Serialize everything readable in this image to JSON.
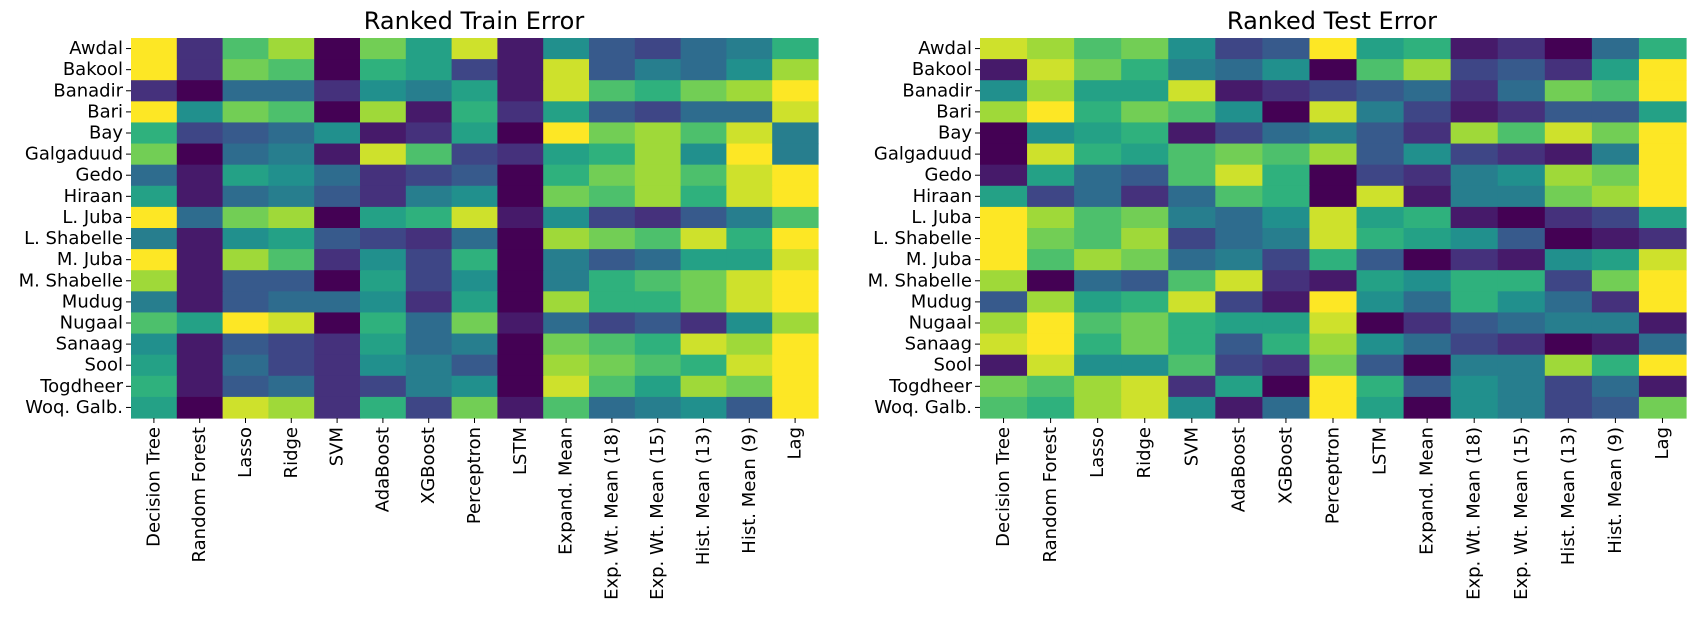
{
  "chart_data": [
    {
      "type": "heatmap",
      "title": "Ranked Train Error",
      "colormap": "viridis",
      "value_range": [
        1,
        15
      ],
      "rows": [
        "Awdal",
        "Bakool",
        "Banadir",
        "Bari",
        "Bay",
        "Galgaduud",
        "Gedo",
        "Hiraan",
        "L. Juba",
        "L. Shabelle",
        "M. Juba",
        "M. Shabelle",
        "Mudug",
        "Nugaal",
        "Sanaag",
        "Sool",
        "Togdheer",
        "Woq. Galb."
      ],
      "columns": [
        "Decision Tree",
        "Random Forest",
        "Lasso",
        "Ridge",
        "SVM",
        "AdaBoost",
        "XGBoost",
        "Perceptron",
        "LSTM",
        "Expand. Mean",
        "Exp. Wt. Mean (18)",
        "Exp. Wt. Mean (15)",
        "Hist. Mean (13)",
        "Hist. Mean (9)",
        "Lag"
      ],
      "values": [
        [
          15,
          3,
          11,
          13,
          1,
          12,
          9,
          14,
          2,
          8,
          5,
          4,
          6,
          7,
          10
        ],
        [
          15,
          3,
          12,
          11,
          1,
          10,
          9,
          4,
          2,
          14,
          5,
          7,
          6,
          8,
          13
        ],
        [
          3,
          1,
          6,
          6,
          3,
          8,
          7,
          9,
          2,
          14,
          11,
          10,
          12,
          13,
          15
        ],
        [
          15,
          8,
          12,
          11,
          1,
          13,
          2,
          10,
          3,
          9,
          5,
          4,
          6,
          6,
          14
        ],
        [
          10,
          4,
          5,
          6,
          8,
          2,
          3,
          9,
          1,
          15,
          12,
          13,
          11,
          14,
          7
        ],
        [
          12,
          1,
          6,
          7,
          2,
          14,
          11,
          4,
          3,
          9,
          10,
          13,
          8,
          15,
          7
        ],
        [
          6,
          2,
          9,
          8,
          6,
          3,
          4,
          5,
          1,
          10,
          12,
          13,
          11,
          14,
          15
        ],
        [
          9,
          2,
          6,
          7,
          5,
          3,
          7,
          8,
          1,
          12,
          11,
          13,
          10,
          14,
          15
        ],
        [
          15,
          6,
          12,
          13,
          1,
          9,
          10,
          14,
          2,
          8,
          4,
          3,
          5,
          7,
          11
        ],
        [
          7,
          2,
          8,
          9,
          5,
          4,
          3,
          6,
          1,
          13,
          12,
          11,
          14,
          10,
          15
        ],
        [
          15,
          2,
          13,
          11,
          3,
          8,
          4,
          10,
          1,
          7,
          5,
          6,
          9,
          9,
          14
        ],
        [
          13,
          2,
          5,
          5,
          1,
          9,
          4,
          8,
          1,
          7,
          10,
          11,
          12,
          14,
          15
        ],
        [
          7,
          2,
          5,
          6,
          6,
          8,
          3,
          9,
          1,
          13,
          10,
          10,
          12,
          14,
          15
        ],
        [
          11,
          9,
          15,
          14,
          1,
          10,
          6,
          12,
          2,
          6,
          4,
          5,
          3,
          8,
          13
        ],
        [
          8,
          2,
          5,
          4,
          3,
          9,
          6,
          7,
          1,
          12,
          11,
          10,
          14,
          13,
          15
        ],
        [
          9,
          2,
          6,
          4,
          3,
          8,
          7,
          5,
          1,
          13,
          12,
          11,
          10,
          14,
          15
        ],
        [
          10,
          2,
          5,
          6,
          3,
          4,
          7,
          8,
          1,
          14,
          11,
          9,
          13,
          12,
          15
        ],
        [
          9,
          1,
          14,
          13,
          3,
          10,
          4,
          12,
          2,
          11,
          6,
          7,
          8,
          5,
          15
        ]
      ]
    },
    {
      "type": "heatmap",
      "title": "Ranked Test Error",
      "colormap": "viridis",
      "value_range": [
        1,
        15
      ],
      "rows": [
        "Awdal",
        "Bakool",
        "Banadir",
        "Bari",
        "Bay",
        "Galgaduud",
        "Gedo",
        "Hiraan",
        "L. Juba",
        "L. Shabelle",
        "M. Juba",
        "M. Shabelle",
        "Mudug",
        "Nugaal",
        "Sanaag",
        "Sool",
        "Togdheer",
        "Woq. Galb."
      ],
      "columns": [
        "Decision Tree",
        "Random Forest",
        "Lasso",
        "Ridge",
        "SVM",
        "AdaBoost",
        "XGBoost",
        "Perceptron",
        "LSTM",
        "Expand. Mean",
        "Exp. Wt. Mean (18)",
        "Exp. Wt. Mean (15)",
        "Hist. Mean (13)",
        "Hist. Mean (9)",
        "Lag"
      ],
      "values": [
        [
          14,
          13,
          11,
          12,
          8,
          4,
          5,
          15,
          9,
          10,
          2,
          3,
          1,
          6,
          10
        ],
        [
          2,
          14,
          12,
          10,
          7,
          6,
          8,
          1,
          11,
          13,
          4,
          5,
          3,
          9,
          15
        ],
        [
          8,
          13,
          9,
          9,
          14,
          2,
          3,
          4,
          5,
          6,
          3,
          6,
          12,
          11,
          15
        ],
        [
          13,
          15,
          10,
          12,
          11,
          8,
          1,
          14,
          7,
          4,
          2,
          3,
          5,
          5,
          9
        ],
        [
          1,
          8,
          9,
          10,
          2,
          4,
          6,
          7,
          5,
          3,
          13,
          11,
          14,
          12,
          15
        ],
        [
          1,
          14,
          10,
          9,
          11,
          12,
          11,
          13,
          5,
          8,
          4,
          3,
          2,
          7,
          15
        ],
        [
          2,
          9,
          6,
          5,
          11,
          14,
          10,
          1,
          4,
          3,
          7,
          8,
          13,
          12,
          15
        ],
        [
          9,
          4,
          6,
          3,
          6,
          11,
          10,
          1,
          14,
          2,
          7,
          7,
          12,
          13,
          15
        ],
        [
          15,
          13,
          11,
          12,
          7,
          6,
          8,
          14,
          9,
          10,
          2,
          1,
          3,
          4,
          9
        ],
        [
          15,
          12,
          11,
          13,
          4,
          6,
          7,
          14,
          10,
          9,
          8,
          5,
          1,
          2,
          3
        ],
        [
          15,
          11,
          13,
          12,
          6,
          7,
          4,
          10,
          5,
          1,
          3,
          2,
          8,
          9,
          14
        ],
        [
          13,
          1,
          6,
          5,
          11,
          14,
          3,
          2,
          9,
          8,
          10,
          10,
          4,
          12,
          15
        ],
        [
          5,
          13,
          9,
          10,
          14,
          4,
          2,
          15,
          8,
          6,
          10,
          8,
          6,
          3,
          15
        ],
        [
          13,
          15,
          11,
          12,
          10,
          9,
          9,
          14,
          1,
          3,
          5,
          6,
          7,
          7,
          2
        ],
        [
          14,
          15,
          10,
          12,
          10,
          5,
          10,
          13,
          8,
          6,
          4,
          3,
          1,
          2,
          6
        ],
        [
          2,
          14,
          8,
          8,
          11,
          4,
          3,
          12,
          5,
          1,
          7,
          7,
          13,
          10,
          15
        ],
        [
          12,
          11,
          13,
          14,
          3,
          9,
          1,
          15,
          10,
          5,
          8,
          7,
          4,
          6,
          2
        ],
        [
          11,
          10,
          13,
          14,
          8,
          2,
          6,
          15,
          9,
          1,
          8,
          7,
          4,
          5,
          12
        ]
      ]
    }
  ]
}
